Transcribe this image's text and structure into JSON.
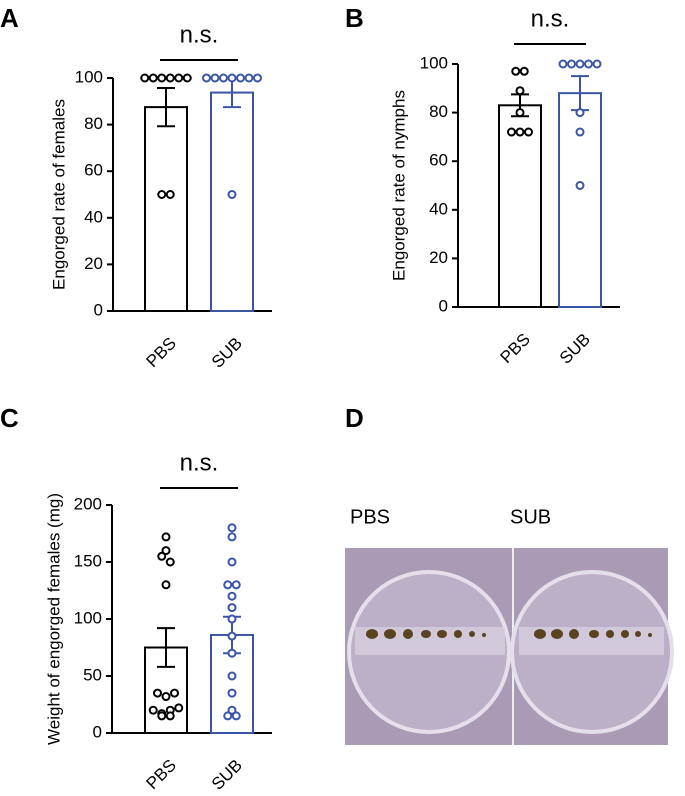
{
  "chart_data": [
    {
      "type": "bar",
      "panel_label": "A",
      "annotation": "n.s.",
      "y_label": "Engorged rate of females",
      "categories": [
        "PBS",
        "SUB"
      ],
      "colors": [
        "#000000",
        "#3b55a5"
      ],
      "values": [
        87.5,
        93.75
      ],
      "errors": [
        8.2,
        6.25
      ],
      "points": [
        [
          100,
          100,
          100,
          100,
          100,
          100,
          50,
          50
        ],
        [
          100,
          100,
          100,
          100,
          100,
          100,
          100,
          50
        ]
      ],
      "ylim": [
        0,
        100
      ],
      "yticks": [
        0,
        20,
        40,
        60,
        80,
        100
      ]
    },
    {
      "type": "bar",
      "panel_label": "B",
      "annotation": "n.s.",
      "y_label": "Engorged rate of nymphs",
      "categories": [
        "PBS",
        "SUB"
      ],
      "colors": [
        "#000000",
        "#3b55a5"
      ],
      "values": [
        83,
        88
      ],
      "errors": [
        4.5,
        7
      ],
      "points": [
        [
          97,
          97,
          89,
          80,
          72,
          72,
          72
        ],
        [
          100,
          100,
          100,
          100,
          100,
          80,
          72,
          50
        ]
      ],
      "ylim": [
        0,
        100
      ],
      "yticks": [
        0,
        20,
        40,
        60,
        80,
        100
      ]
    },
    {
      "type": "bar",
      "panel_label": "C",
      "annotation": "n.s.",
      "y_label": "Weight of engorged females (mg)",
      "categories": [
        "PBS",
        "SUB"
      ],
      "colors": [
        "#000000",
        "#3b55a5"
      ],
      "values": [
        75,
        86
      ],
      "errors": [
        17,
        16
      ],
      "points": [
        [
          172,
          160,
          155,
          150,
          130,
          35,
          32,
          35,
          20,
          15,
          17,
          15,
          20,
          22
        ],
        [
          180,
          172,
          150,
          130,
          130,
          120,
          110,
          100,
          85,
          70,
          50,
          35,
          20,
          15,
          15
        ]
      ],
      "ylim": [
        0,
        200
      ],
      "yticks": [
        0,
        50,
        100,
        150,
        200
      ]
    }
  ],
  "panel_d": {
    "panel_label": "D",
    "labels": [
      "PBS",
      "SUB"
    ]
  }
}
